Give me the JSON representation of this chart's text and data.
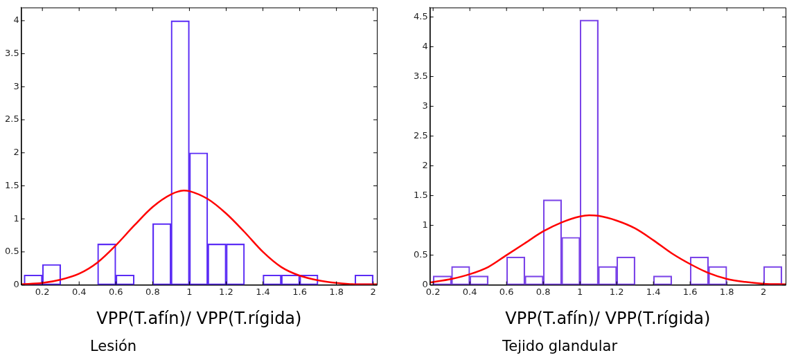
{
  "chart_data": [
    {
      "type": "bar",
      "xlabel": "VPP(T.afín)/ VPP(T.rígida)",
      "annotations": [
        "Lesión"
      ],
      "grid": false,
      "legend": false,
      "xlim": [
        0.085,
        2.02
      ],
      "xticks": [
        0.2,
        0.4,
        0.6,
        0.8,
        1,
        1.2,
        1.4,
        1.6,
        1.8,
        2
      ],
      "ylim": [
        0,
        4.2
      ],
      "yticks": [
        0,
        0.5,
        1,
        1.5,
        2,
        2.5,
        3,
        3.5,
        4
      ],
      "series": [
        {
          "color": "#5b2cf5",
          "x": [
            0.15,
            0.25,
            0.35,
            0.45,
            0.55,
            0.65,
            0.75,
            0.85,
            0.95,
            1.05,
            1.15,
            1.25,
            1.35,
            1.45,
            1.55,
            1.65,
            1.75,
            1.85,
            1.95
          ],
          "values": [
            0.15,
            0.31,
            0,
            0,
            0.62,
            0.15,
            0,
            0.93,
            4,
            2,
            0.62,
            0.62,
            0,
            0.15,
            0.15,
            0.15,
            0,
            0,
            0.15
          ]
        },
        {
          "type": "line",
          "color": "#ff0000",
          "x": [
            0.085,
            0.2,
            0.3,
            0.4,
            0.5,
            0.6,
            0.7,
            0.8,
            0.9,
            0.97,
            1.0,
            1.1,
            1.2,
            1.3,
            1.4,
            1.5,
            1.6,
            1.7,
            1.8,
            1.9,
            2.02
          ],
          "values": [
            0.01,
            0.03,
            0.08,
            0.17,
            0.34,
            0.6,
            0.9,
            1.18,
            1.37,
            1.43,
            1.42,
            1.3,
            1.08,
            0.8,
            0.5,
            0.27,
            0.14,
            0.07,
            0.03,
            0.01,
            0.01
          ]
        }
      ]
    },
    {
      "type": "bar",
      "xlabel": "VPP(T.afín)/ VPP(T.rígida)",
      "annotations": [
        "Tejido glandular"
      ],
      "grid": false,
      "legend": false,
      "xlim": [
        0.183,
        2.12
      ],
      "xticks": [
        0.2,
        0.4,
        0.6,
        0.8,
        1,
        1.2,
        1.4,
        1.6,
        1.8,
        2
      ],
      "ylim": [
        0,
        4.66
      ],
      "yticks": [
        0,
        0.5,
        1,
        1.5,
        2,
        2.5,
        3,
        3.5,
        4,
        4.5
      ],
      "series": [
        {
          "color": "#7b44e8",
          "x": [
            0.25,
            0.35,
            0.45,
            0.55,
            0.65,
            0.75,
            0.85,
            0.95,
            1.05,
            1.15,
            1.25,
            1.35,
            1.45,
            1.55,
            1.65,
            1.75,
            1.85,
            1.95,
            2.05
          ],
          "values": [
            0.15,
            0.31,
            0.15,
            0,
            0.47,
            0.15,
            1.43,
            0.8,
            4.45,
            0.31,
            0.47,
            0,
            0.15,
            0,
            0.47,
            0.31,
            0,
            0,
            0.31
          ]
        },
        {
          "type": "line",
          "color": "#ff0000",
          "x": [
            0.183,
            0.3,
            0.4,
            0.5,
            0.6,
            0.7,
            0.8,
            0.9,
            1.0,
            1.05,
            1.1,
            1.2,
            1.3,
            1.4,
            1.5,
            1.6,
            1.7,
            1.8,
            1.9,
            2.0,
            2.12
          ],
          "values": [
            0.04,
            0.1,
            0.18,
            0.3,
            0.5,
            0.7,
            0.9,
            1.05,
            1.15,
            1.17,
            1.16,
            1.08,
            0.95,
            0.75,
            0.53,
            0.35,
            0.2,
            0.1,
            0.05,
            0.02,
            0.01
          ]
        }
      ]
    }
  ]
}
